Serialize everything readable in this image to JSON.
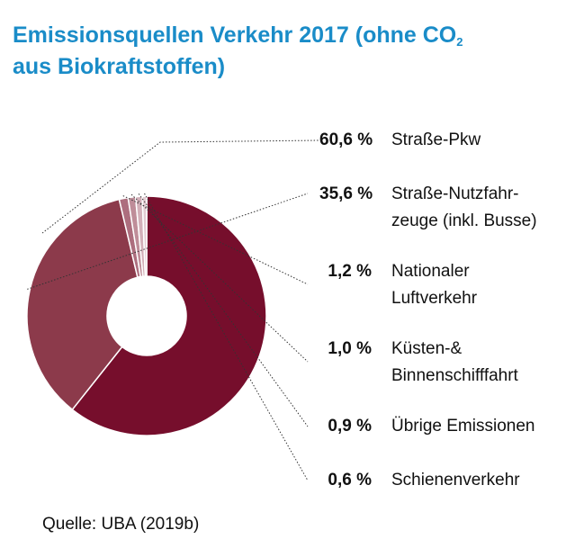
{
  "title": {
    "line1": "Emissionsquellen Verkehr 2017 (ohne CO",
    "sub": "2",
    "line2": "aus Biokraftstoffen)"
  },
  "chart_data": {
    "type": "pie",
    "donut": true,
    "slices": [
      {
        "label_lines": [
          "Straße-Pkw"
        ],
        "value": 60.6,
        "value_label": "60,6 %",
        "color": "#760e2c"
      },
      {
        "label_lines": [
          "Straße-Nutzfahr-",
          "zeuge (inkl. Busse)"
        ],
        "value": 35.6,
        "value_label": "35,6 %",
        "color": "#8c3a4b"
      },
      {
        "label_lines": [
          "Nationaler",
          "Luftverkehr"
        ],
        "value": 1.2,
        "value_label": "1,2 %",
        "color": "#ad6e7e"
      },
      {
        "label_lines": [
          "Küsten-&",
          "Binnenschifffahrt"
        ],
        "value": 1.0,
        "value_label": "1,0 %",
        "color": "#bf8d99"
      },
      {
        "label_lines": [
          "Übrige Emissionen"
        ],
        "value": 0.9,
        "value_label": "0,9 %",
        "color": "#d3b0b9"
      },
      {
        "label_lines": [
          "Schienenverkehr"
        ],
        "value": 0.6,
        "value_label": "0,6 %",
        "color": "#e2ccd2"
      }
    ]
  },
  "source": "Quelle: UBA (2019b)"
}
